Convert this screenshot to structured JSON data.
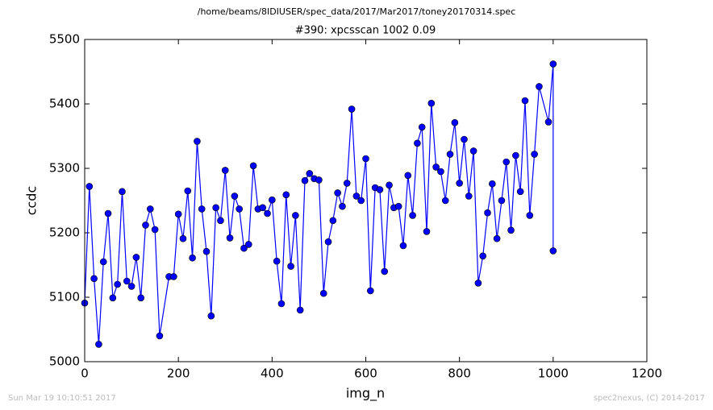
{
  "chart_data": {
    "type": "line",
    "suptitle": "/home/beams/8IDIUSER/spec_data/2017/Mar2017/toney20170314.spec",
    "title": "#390: xpcsscan 1002 0.09",
    "x_label": "img_n",
    "y_label": "ccdc",
    "xlim": [
      0,
      1200
    ],
    "xticks": [
      0,
      200,
      400,
      600,
      800,
      1000,
      1200
    ],
    "ylim": [
      5000,
      5500
    ],
    "yticks": [
      5000,
      5100,
      5200,
      5300,
      5400,
      5500
    ],
    "grid": false,
    "series": [
      {
        "name": "ccdc",
        "color": "#0000ff",
        "x": [
          0,
          10,
          20,
          30,
          40,
          50,
          60,
          70,
          80,
          90,
          100,
          110,
          120,
          130,
          140,
          150,
          160,
          180,
          190,
          200,
          210,
          220,
          230,
          240,
          250,
          260,
          270,
          280,
          290,
          300,
          310,
          320,
          330,
          340,
          350,
          360,
          370,
          380,
          390,
          400,
          410,
          420,
          430,
          440,
          450,
          460,
          470,
          480,
          490,
          500,
          510,
          520,
          530,
          540,
          550,
          560,
          570,
          580,
          590,
          600,
          610,
          620,
          630,
          640,
          650,
          660,
          670,
          680,
          690,
          700,
          710,
          720,
          730,
          740,
          750,
          760,
          770,
          780,
          790,
          800,
          810,
          820,
          830,
          840,
          850,
          860,
          870,
          880,
          890,
          900,
          910,
          920,
          930,
          940,
          950,
          960,
          970,
          990,
          1000,
          1000
        ],
        "values": [
          5091,
          5272,
          5129,
          5027,
          5155,
          5230,
          5099,
          5120,
          5264,
          5125,
          5117,
          5162,
          5099,
          5212,
          5237,
          5205,
          5040,
          5132,
          5132,
          5229,
          5191,
          5265,
          5161,
          5342,
          5237,
          5171,
          5071,
          5239,
          5219,
          5297,
          5192,
          5257,
          5237,
          5176,
          5182,
          5304,
          5237,
          5239,
          5230,
          5251,
          5156,
          5090,
          5259,
          5148,
          5227,
          5080,
          5281,
          5292,
          5284,
          5282,
          5106,
          5186,
          5219,
          5262,
          5241,
          5277,
          5392,
          5257,
          5250,
          5315,
          5110,
          5270,
          5267,
          5140,
          5274,
          5239,
          5241,
          5180,
          5289,
          5227,
          5339,
          5364,
          5202,
          5401,
          5302,
          5295,
          5250,
          5322,
          5371,
          5277,
          5345,
          5257,
          5327,
          5122,
          5164,
          5231,
          5276,
          5191,
          5250,
          5310,
          5204,
          5320,
          5264,
          5405,
          5227,
          5322,
          5427,
          5372,
          5462,
          5172
        ]
      }
    ]
  },
  "footer": {
    "left": "Sun Mar 19 10:10:51 2017",
    "right": "spec2nexus, (C) 2014-2017"
  }
}
